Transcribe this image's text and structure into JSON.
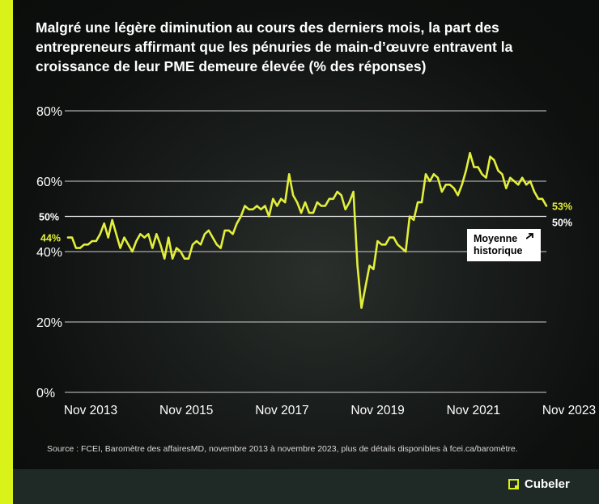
{
  "title": "Malgré une légère diminution au cours des derniers mois, la part des entrepreneurs affirmant que les pénuries de main-d’œuvre entravent la croissance de leur PME demeure élevée (% des réponses)",
  "source": "Source : FCEI, Baromètre des affairesMD, novembre 2013 à novembre 2023, plus de détails disponibles à fcei.ca/baromètre.",
  "brand": "Cubeler",
  "colors": {
    "accent": "#d8f21a",
    "line": "#e3ef3a",
    "background": "#0b0d0c",
    "footer": "#1f2a26"
  },
  "chart_data": {
    "type": "line",
    "title": "Malgré une légère diminution au cours des derniers mois, la part des entrepreneurs affirmant que les pénuries de main-d’œuvre entravent la croissance de leur PME demeure élevée (% des réponses)",
    "ylim": [
      0,
      80
    ],
    "y_ticks": [
      "0%",
      "20%",
      "40%",
      "60%",
      "80%"
    ],
    "x_ticks": [
      "Nov 2013",
      "Nov 2015",
      "Nov 2017",
      "Nov 2019",
      "Nov 2021",
      "Nov 2023"
    ],
    "grid": true,
    "series": [
      {
        "values": [
          44,
          44,
          41,
          41,
          42,
          42,
          43,
          43,
          45,
          48,
          44,
          49,
          45,
          41,
          44,
          42,
          40,
          43,
          45,
          44,
          45,
          41,
          45,
          42,
          38,
          44,
          38,
          41,
          40,
          38,
          38,
          42,
          43,
          42,
          45,
          46,
          44,
          42,
          41,
          46,
          46,
          45,
          48,
          50,
          53,
          52,
          52,
          53,
          52,
          53,
          50,
          55,
          53,
          55,
          54,
          62,
          56,
          54,
          51,
          54,
          51,
          51,
          54,
          53,
          53,
          55,
          55,
          57,
          56,
          52,
          54,
          57,
          36,
          24,
          30,
          36,
          35,
          43,
          42,
          42,
          44,
          44,
          42,
          41,
          40,
          50,
          49,
          54,
          54,
          62,
          60,
          62,
          61,
          57,
          59,
          59,
          58,
          56,
          59,
          63,
          68,
          64,
          64,
          62,
          61,
          67,
          66,
          63,
          62,
          58,
          61,
          60,
          59,
          61,
          59,
          60,
          57,
          55,
          55,
          53
        ]
      }
    ],
    "annotations": {
      "start_label": "44%",
      "end_label": "53%",
      "reference_line": {
        "value": 50,
        "axis_label": "50%",
        "end_label": "50%",
        "name": "Moyenne historique"
      }
    },
    "callout_lines": [
      "Moyenne",
      "historique"
    ]
  }
}
